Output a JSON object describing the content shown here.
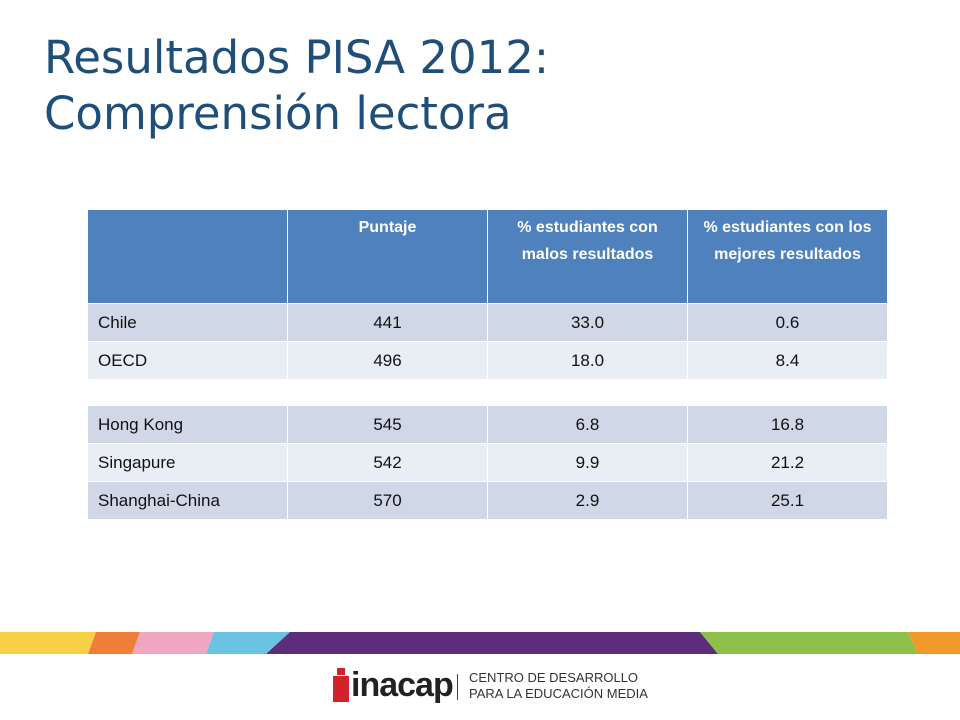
{
  "slide": {
    "title_line1": "Resultados PISA 2012:",
    "title_line2": "Comprensión lectora"
  },
  "table": {
    "headers": [
      "",
      "Puntaje",
      "% estudiantes con malos resultados",
      "% estudiantes con los mejores resultados"
    ],
    "group1": [
      [
        "Chile",
        "441",
        "33.0",
        "0.6"
      ],
      [
        "OECD",
        "496",
        "18.0",
        "8.4"
      ]
    ],
    "group2": [
      [
        "Hong Kong",
        "545",
        "6.8",
        "16.8"
      ],
      [
        "Singapure",
        "542",
        "9.9",
        "21.2"
      ],
      [
        "Shanghai-China",
        "570",
        "2.9",
        "25.1"
      ]
    ]
  },
  "footer": {
    "logo": "inacap",
    "line1": "CENTRO DE DESARROLLO",
    "line2": "PARA LA EDUCACIÓN MEDIA"
  },
  "colors": {
    "title": "#1f4e79",
    "header_bg": "#4f81bd",
    "row_odd": "#d0d8e8",
    "row_even": "#e9edf4",
    "stripes": [
      "#f7d046",
      "#ee7f3b",
      "#f0a5c0",
      "#6ac3e0",
      "#5c2d7a",
      "#8cc04a",
      "#f09a2b"
    ]
  }
}
